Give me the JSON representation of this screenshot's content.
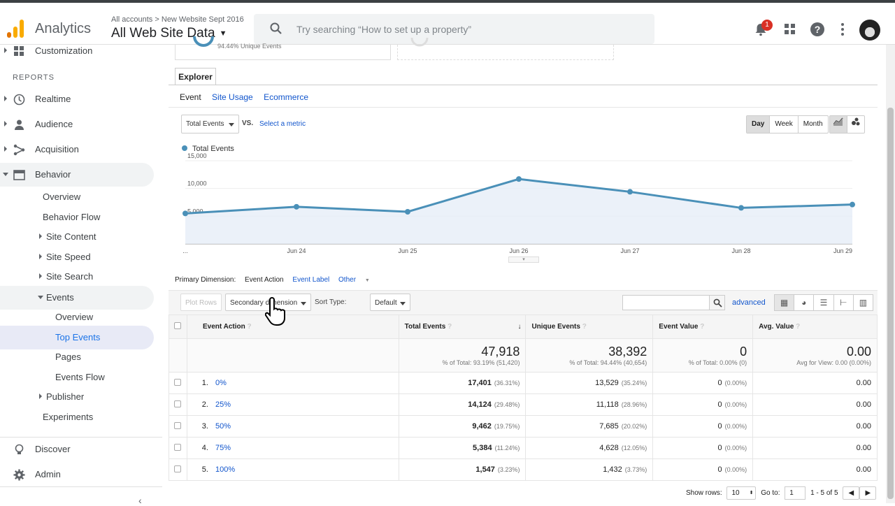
{
  "header": {
    "app_name": "Analytics",
    "crumb_all": "All accounts",
    "crumb_sep": ">",
    "crumb_property": "New Website Sept 2016",
    "view_name": "All Web Site Data",
    "search_placeholder": "Try searching “How to set up a property”",
    "notification_count": "1"
  },
  "sidebar": {
    "reports_label": "REPORTS",
    "customization": "Customization",
    "realtime": "Realtime",
    "audience": "Audience",
    "acquisition": "Acquisition",
    "behavior": "Behavior",
    "overview": "Overview",
    "behavior_flow": "Behavior Flow",
    "site_content": "Site Content",
    "site_speed": "Site Speed",
    "site_search": "Site Search",
    "events": "Events",
    "events_overview": "Overview",
    "top_events": "Top Events",
    "pages": "Pages",
    "events_flow": "Events Flow",
    "publisher": "Publisher",
    "experiments": "Experiments",
    "discover": "Discover",
    "admin": "Admin"
  },
  "summary": {
    "unique_events_text": "94.44% Unique Events"
  },
  "explorer": {
    "tab": "Explorer",
    "subtabs": [
      "Event",
      "Site Usage",
      "Ecommerce"
    ],
    "metric": "Total Events",
    "vs": "VS.",
    "select_metric": "Select a metric",
    "periods": [
      "Day",
      "Week",
      "Month"
    ],
    "active_period": "Day"
  },
  "chart_data": {
    "type": "line",
    "series": [
      {
        "name": "Total Events",
        "values": [
          5500,
          6700,
          5800,
          11700,
          9400,
          6500,
          7100
        ]
      }
    ],
    "categories": [
      "...",
      "Jun 24",
      "Jun 25",
      "Jun 26",
      "Jun 27",
      "Jun 28",
      "Jun 29"
    ],
    "yticks": [
      "15,000",
      "10,000",
      "5,000"
    ],
    "ylim": [
      0,
      15000
    ],
    "color": "#4a90b8",
    "fill": "#e6eef8"
  },
  "dimension": {
    "label": "Primary Dimension:",
    "action": "Event Action",
    "event_label": "Event Label",
    "other": "Other"
  },
  "toolbar": {
    "plot_rows": "Plot Rows",
    "secondary": "Secondary dimension",
    "sort_label": "Sort Type:",
    "sort_value": "Default",
    "advanced": "advanced"
  },
  "table": {
    "headers": [
      "Event Action",
      "Total Events",
      "Unique Events",
      "Event Value",
      "Avg. Value"
    ],
    "totals": {
      "total_events": "47,918",
      "total_events_sub": "% of Total: 93.19% (51,420)",
      "unique_events": "38,392",
      "unique_events_sub": "% of Total: 94.44% (40,654)",
      "event_value": "0",
      "event_value_sub": "% of Total: 0.00% (0)",
      "avg_value": "0.00",
      "avg_value_sub": "Avg for View: 0.00 (0.00%)"
    },
    "rows": [
      {
        "n": "1.",
        "action": "0%",
        "te": "17,401",
        "te_pct": "(36.31%)",
        "ue": "13,529",
        "ue_pct": "(35.24%)",
        "ev": "0",
        "ev_pct": "(0.00%)",
        "av": "0.00"
      },
      {
        "n": "2.",
        "action": "25%",
        "te": "14,124",
        "te_pct": "(29.48%)",
        "ue": "11,118",
        "ue_pct": "(28.96%)",
        "ev": "0",
        "ev_pct": "(0.00%)",
        "av": "0.00"
      },
      {
        "n": "3.",
        "action": "50%",
        "te": "9,462",
        "te_pct": "(19.75%)",
        "ue": "7,685",
        "ue_pct": "(20.02%)",
        "ev": "0",
        "ev_pct": "(0.00%)",
        "av": "0.00"
      },
      {
        "n": "4.",
        "action": "75%",
        "te": "5,384",
        "te_pct": "(11.24%)",
        "ue": "4,628",
        "ue_pct": "(12.05%)",
        "ev": "0",
        "ev_pct": "(0.00%)",
        "av": "0.00"
      },
      {
        "n": "5.",
        "action": "100%",
        "te": "1,547",
        "te_pct": "(3.23%)",
        "ue": "1,432",
        "ue_pct": "(3.73%)",
        "ev": "0",
        "ev_pct": "(0.00%)",
        "av": "0.00"
      }
    ]
  },
  "footer": {
    "show_rows": "Show rows:",
    "rows_value": "10",
    "goto": "Go to:",
    "goto_value": "1",
    "range": "1 - 5 of 5"
  },
  "colors": {
    "link": "#1155cc",
    "accent": "#1a73e8",
    "logo": [
      "#f9ab00",
      "#e37400"
    ]
  }
}
